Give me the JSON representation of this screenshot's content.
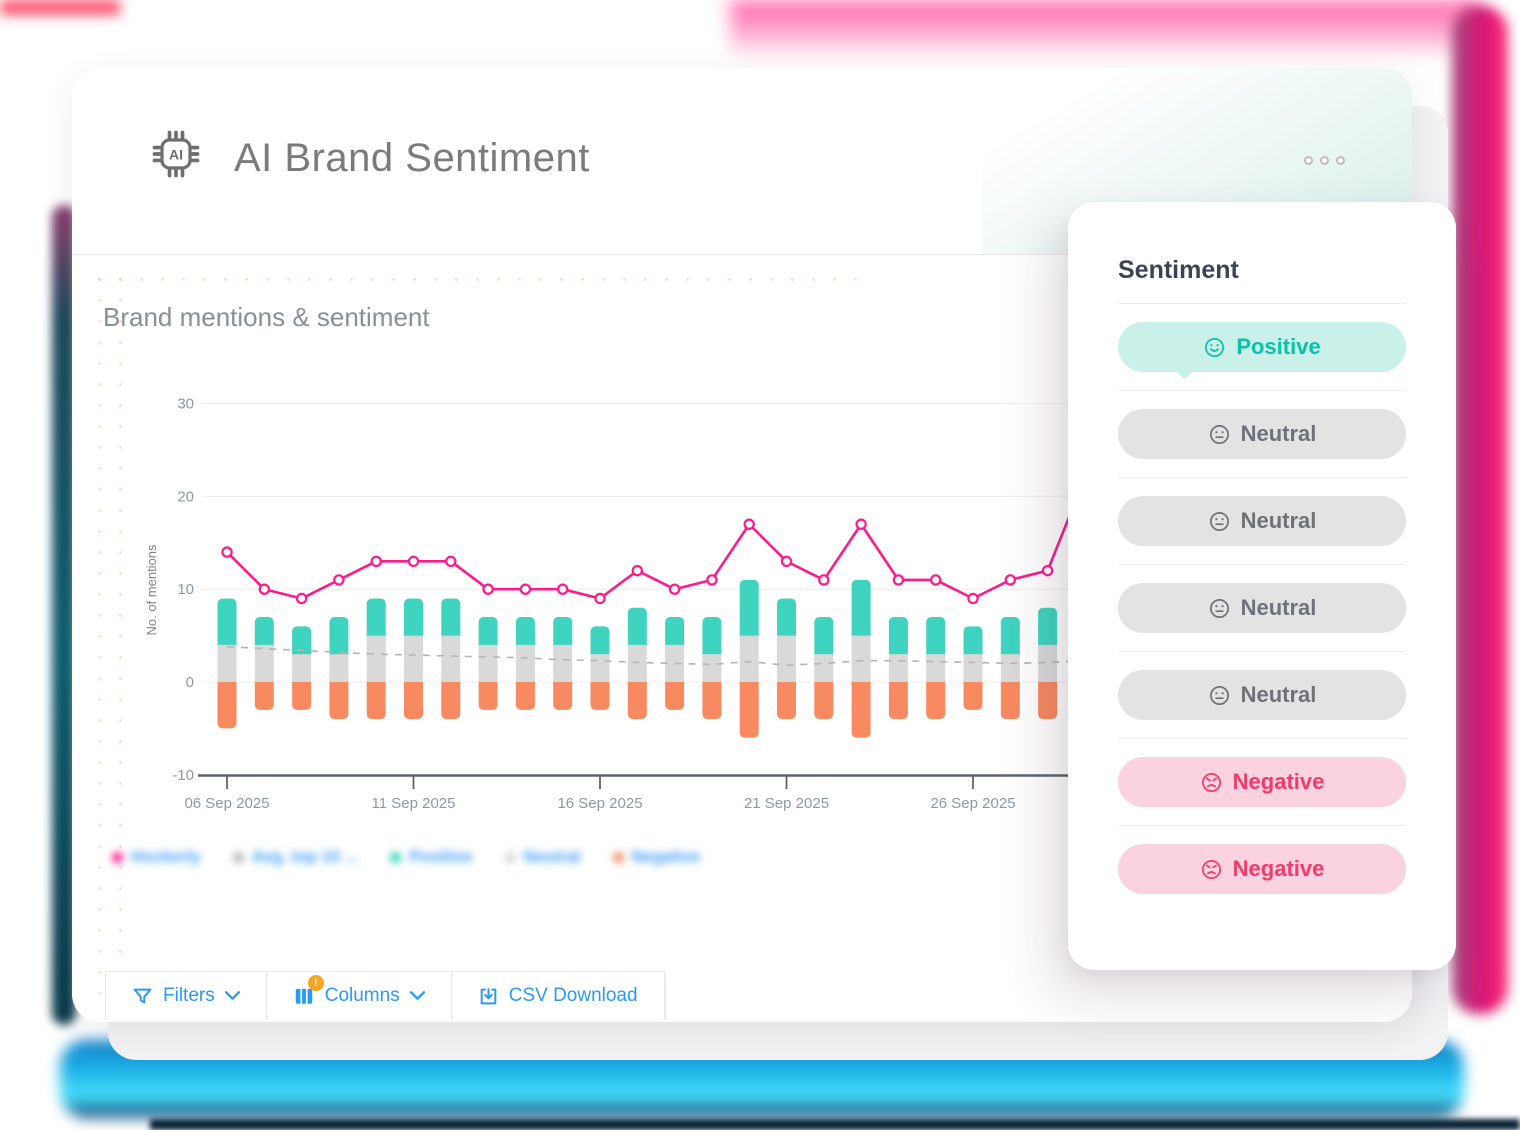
{
  "header": {
    "title": "AI Brand Sentiment"
  },
  "chart_data": {
    "type": "combo-line-stacked-bar",
    "title": "Brand mentions & sentiment",
    "xlabel": "",
    "ylabel": "No. of mentions",
    "ylim": [
      -10,
      30
    ],
    "yticks": [
      30,
      20,
      10,
      0,
      -10
    ],
    "grid": true,
    "legend_position": "bottom",
    "x_tick_labels": [
      "06 Sep 2025",
      "11 Sep 2025",
      "16 Sep 2025",
      "21 Sep 2025",
      "26 Sep 2025"
    ],
    "categories": [
      "06 Sep 2025",
      "07 Sep 2025",
      "08 Sep 2025",
      "09 Sep 2025",
      "10 Sep 2025",
      "11 Sep 2025",
      "12 Sep 2025",
      "13 Sep 2025",
      "14 Sep 2025",
      "15 Sep 2025",
      "16 Sep 2025",
      "17 Sep 2025",
      "18 Sep 2025",
      "19 Sep 2025",
      "20 Sep 2025",
      "21 Sep 2025",
      "22 Sep 2025",
      "23 Sep 2025",
      "24 Sep 2025",
      "25 Sep 2025",
      "26 Sep 2025",
      "27 Sep 2025",
      "28 Sep 2025",
      "29 Sep 2025"
    ],
    "series": [
      {
        "name": "Hockerly",
        "type": "line",
        "color": "#ff1a8c",
        "values": [
          14,
          10,
          9,
          11,
          13,
          13,
          13,
          10,
          10,
          10,
          9,
          12,
          10,
          11,
          17,
          13,
          11,
          17,
          11,
          11,
          9,
          11,
          12,
          22
        ]
      },
      {
        "name": "Avg. top 10 ...",
        "type": "line-dashed",
        "color": "#b4b4b4",
        "values": [
          3.8,
          3.6,
          3.4,
          3.2,
          3,
          2.9,
          2.8,
          2.7,
          2.6,
          2.4,
          2.3,
          2.1,
          2,
          1.9,
          2.2,
          1.8,
          2,
          2.3,
          2.3,
          2.2,
          2.1,
          2,
          2.1,
          2.3
        ]
      },
      {
        "name": "Positive",
        "type": "bar",
        "stack": "sentiment",
        "color": "#3fd4bf",
        "values": [
          5,
          3,
          3,
          4,
          4,
          4,
          4,
          3,
          3,
          3,
          3,
          4,
          3,
          4,
          6,
          4,
          4,
          6,
          4,
          4,
          3,
          4,
          4,
          null
        ]
      },
      {
        "name": "Neutral",
        "type": "bar",
        "stack": "sentiment",
        "color": "#d9d9d9",
        "values": [
          4,
          4,
          3,
          3,
          5,
          5,
          5,
          4,
          4,
          4,
          3,
          4,
          4,
          3,
          5,
          5,
          3,
          5,
          3,
          3,
          3,
          3,
          4,
          null
        ]
      },
      {
        "name": "Negative",
        "type": "bar",
        "stack": "sentiment",
        "color": "#f78a61",
        "values": [
          -5,
          -3,
          -3,
          -4,
          -4,
          -4,
          -4,
          -3,
          -3,
          -3,
          -3,
          -4,
          -3,
          -4,
          -6,
          -4,
          -4,
          -6,
          -4,
          -4,
          -3,
          -4,
          -4,
          null
        ]
      }
    ]
  },
  "legend": {
    "items": [
      {
        "label": "Hockerly",
        "color": "#ff1a8c"
      },
      {
        "label": "Avg. top 10 ...",
        "color": "#b5b5b5"
      },
      {
        "label": "Positive",
        "color": "#2fd3b8"
      },
      {
        "label": "Neutral",
        "color": "#d6d6d6"
      },
      {
        "label": "Negative",
        "color": "#f78a61"
      }
    ]
  },
  "sentiment_panel": {
    "title": "Sentiment",
    "pills": [
      {
        "label": "Positive",
        "type": "positive"
      },
      {
        "label": "Neutral",
        "type": "neutral"
      },
      {
        "label": "Neutral",
        "type": "neutral"
      },
      {
        "label": "Neutral",
        "type": "neutral"
      },
      {
        "label": "Neutral",
        "type": "neutral"
      },
      {
        "label": "Negative",
        "type": "negative"
      },
      {
        "label": "Negative",
        "type": "negative"
      }
    ]
  },
  "toolbar": {
    "filters_label": "Filters",
    "columns_label": "Columns",
    "columns_badge": "!",
    "csv_label": "CSV Download",
    "accent_color": "#2b9af3"
  }
}
